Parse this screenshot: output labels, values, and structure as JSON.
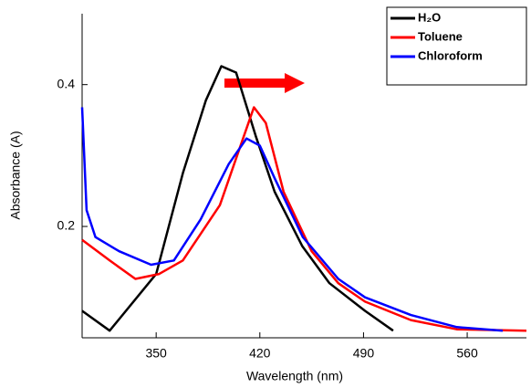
{
  "chart_data": {
    "type": "line",
    "xlabel": "Wavelength (nm)",
    "ylabel": "Absorbance (A)",
    "xlim": [
      300,
      600
    ],
    "ylim": [
      0.043,
      0.5
    ],
    "xticks": [
      350,
      420,
      490,
      560
    ],
    "yticks": [
      0.2,
      0.4
    ],
    "series": [
      {
        "name": "H₂O",
        "color": "#000000",
        "x": [
          300,
          318.6,
          350,
          368,
          383.6,
          394,
          404,
          417.5,
          430,
          448.7,
          467,
          491,
          510
        ],
        "values": [
          0.081,
          0.053,
          0.133,
          0.275,
          0.378,
          0.426,
          0.417,
          0.326,
          0.249,
          0.172,
          0.12,
          0.081,
          0.053
        ]
      },
      {
        "name": "Toluene",
        "color": "#ff0000",
        "x": [
          300,
          318.6,
          336,
          352,
          368,
          393,
          408,
          416,
          424,
          436,
          455,
          473,
          491,
          522,
          553,
          600
        ],
        "values": [
          0.181,
          0.152,
          0.126,
          0.133,
          0.152,
          0.23,
          0.32,
          0.368,
          0.346,
          0.249,
          0.165,
          0.12,
          0.094,
          0.068,
          0.055,
          0.053
        ]
      },
      {
        "name": "Chloroform",
        "color": "#0000ff",
        "x": [
          300,
          303,
          309,
          325,
          346.6,
          362,
          380,
          399,
          411,
          420,
          430,
          449,
          473,
          491,
          522,
          553,
          584
        ],
        "values": [
          0.368,
          0.223,
          0.185,
          0.165,
          0.146,
          0.152,
          0.21,
          0.288,
          0.324,
          0.314,
          0.268,
          0.185,
          0.126,
          0.1,
          0.075,
          0.058,
          0.053
        ]
      }
    ]
  }
}
